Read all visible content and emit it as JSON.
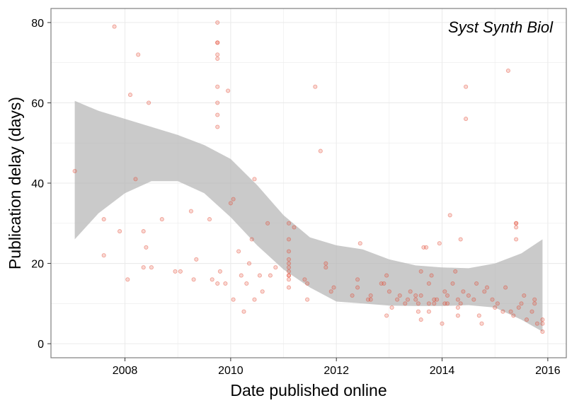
{
  "chart_data": {
    "type": "scatter",
    "title": "",
    "annotation": "Syst Synth Biol",
    "xlabel": "Date published online",
    "ylabel": "Publication delay (days)",
    "xlim": [
      2006.6,
      2016.35
    ],
    "ylim": [
      -3.5,
      83.5
    ],
    "x_ticks": [
      2008,
      2010,
      2012,
      2014,
      2016
    ],
    "x_tick_labels": [
      "2008",
      "2010",
      "2012",
      "2014",
      "2016"
    ],
    "y_ticks": [
      0,
      20,
      40,
      60,
      80
    ],
    "y_tick_labels": [
      "0",
      "20",
      "40",
      "60",
      "80"
    ],
    "grid": true,
    "colors": {
      "points": "#e34a33",
      "band": "#b3b3b3",
      "grid": "#ebebeb",
      "panel_border": "#7f7f7f"
    },
    "confidence_band": {
      "x": [
        2007.05,
        2007.5,
        2008.0,
        2008.5,
        2009.0,
        2009.5,
        2010.0,
        2010.5,
        2011.0,
        2011.5,
        2012.0,
        2012.5,
        2013.0,
        2013.5,
        2014.0,
        2014.5,
        2015.0,
        2015.5,
        2015.9
      ],
      "upper": [
        60.5,
        58.0,
        56.0,
        54.0,
        52.0,
        49.5,
        46.0,
        39.5,
        32.0,
        26.5,
        24.5,
        23.5,
        21.0,
        19.5,
        19.0,
        18.8,
        20.0,
        22.5,
        26.0
      ],
      "lower": [
        26.0,
        32.5,
        37.5,
        40.5,
        40.5,
        37.5,
        31.5,
        24.5,
        18.5,
        14.0,
        10.5,
        10.0,
        9.5,
        9.4,
        9.4,
        9.6,
        9.0,
        6.0,
        3.0
      ]
    },
    "points": [
      [
        2007.05,
        43
      ],
      [
        2007.6,
        31
      ],
      [
        2007.6,
        22
      ],
      [
        2007.8,
        79
      ],
      [
        2007.9,
        28
      ],
      [
        2008.05,
        16
      ],
      [
        2008.1,
        62
      ],
      [
        2008.2,
        41
      ],
      [
        2008.25,
        72
      ],
      [
        2008.35,
        28
      ],
      [
        2008.35,
        19
      ],
      [
        2008.4,
        24
      ],
      [
        2008.45,
        60
      ],
      [
        2008.5,
        19
      ],
      [
        2008.7,
        31
      ],
      [
        2008.95,
        18
      ],
      [
        2009.05,
        18
      ],
      [
        2009.25,
        33
      ],
      [
        2009.3,
        16
      ],
      [
        2009.35,
        21
      ],
      [
        2009.6,
        31
      ],
      [
        2009.65,
        16
      ],
      [
        2009.75,
        15
      ],
      [
        2009.75,
        80
      ],
      [
        2009.75,
        75
      ],
      [
        2009.75,
        75
      ],
      [
        2009.75,
        72
      ],
      [
        2009.75,
        71
      ],
      [
        2009.75,
        64
      ],
      [
        2009.75,
        60
      ],
      [
        2009.75,
        57
      ],
      [
        2009.75,
        54
      ],
      [
        2009.8,
        18
      ],
      [
        2009.9,
        15
      ],
      [
        2009.95,
        63
      ],
      [
        2010.0,
        35
      ],
      [
        2010.05,
        36
      ],
      [
        2010.05,
        11
      ],
      [
        2010.15,
        23
      ],
      [
        2010.2,
        17
      ],
      [
        2010.25,
        8
      ],
      [
        2010.3,
        15
      ],
      [
        2010.35,
        20
      ],
      [
        2010.4,
        26
      ],
      [
        2010.45,
        11
      ],
      [
        2010.45,
        41
      ],
      [
        2010.55,
        17
      ],
      [
        2010.6,
        13
      ],
      [
        2010.7,
        30
      ],
      [
        2010.75,
        17
      ],
      [
        2010.85,
        19
      ],
      [
        2011.1,
        30
      ],
      [
        2011.1,
        26
      ],
      [
        2011.1,
        23
      ],
      [
        2011.1,
        21
      ],
      [
        2011.1,
        20
      ],
      [
        2011.1,
        19
      ],
      [
        2011.1,
        18
      ],
      [
        2011.1,
        17
      ],
      [
        2011.1,
        17
      ],
      [
        2011.1,
        16
      ],
      [
        2011.1,
        14
      ],
      [
        2011.2,
        29
      ],
      [
        2011.4,
        16
      ],
      [
        2011.45,
        15
      ],
      [
        2011.45,
        11
      ],
      [
        2011.6,
        64
      ],
      [
        2011.7,
        48
      ],
      [
        2011.8,
        19
      ],
      [
        2011.8,
        20
      ],
      [
        2011.9,
        13
      ],
      [
        2011.95,
        14
      ],
      [
        2012.3,
        12
      ],
      [
        2012.4,
        14
      ],
      [
        2012.4,
        16
      ],
      [
        2012.45,
        25
      ],
      [
        2012.6,
        11
      ],
      [
        2012.65,
        11
      ],
      [
        2012.65,
        12
      ],
      [
        2012.85,
        15
      ],
      [
        2012.9,
        15
      ],
      [
        2012.95,
        7
      ],
      [
        2012.95,
        17
      ],
      [
        2013.0,
        13
      ],
      [
        2013.05,
        9
      ],
      [
        2013.15,
        11
      ],
      [
        2013.2,
        12
      ],
      [
        2013.3,
        10
      ],
      [
        2013.35,
        11
      ],
      [
        2013.4,
        13
      ],
      [
        2013.5,
        12
      ],
      [
        2013.5,
        11
      ],
      [
        2013.55,
        10
      ],
      [
        2013.55,
        8
      ],
      [
        2013.6,
        6
      ],
      [
        2013.6,
        12
      ],
      [
        2013.6,
        18
      ],
      [
        2013.65,
        24
      ],
      [
        2013.7,
        24
      ],
      [
        2013.75,
        15
      ],
      [
        2013.75,
        10
      ],
      [
        2013.75,
        8
      ],
      [
        2013.8,
        17
      ],
      [
        2013.85,
        11
      ],
      [
        2013.85,
        10
      ],
      [
        2013.9,
        11
      ],
      [
        2013.95,
        25
      ],
      [
        2014.0,
        5
      ],
      [
        2014.05,
        13
      ],
      [
        2014.05,
        10
      ],
      [
        2014.1,
        12
      ],
      [
        2014.1,
        10
      ],
      [
        2014.15,
        32
      ],
      [
        2014.2,
        15
      ],
      [
        2014.25,
        18
      ],
      [
        2014.3,
        7
      ],
      [
        2014.3,
        11
      ],
      [
        2014.3,
        9
      ],
      [
        2014.35,
        26
      ],
      [
        2014.35,
        10
      ],
      [
        2014.4,
        13
      ],
      [
        2014.45,
        64
      ],
      [
        2014.45,
        56
      ],
      [
        2014.5,
        12
      ],
      [
        2014.6,
        11
      ],
      [
        2014.65,
        15
      ],
      [
        2014.7,
        7
      ],
      [
        2014.75,
        5
      ],
      [
        2014.8,
        13
      ],
      [
        2014.85,
        14
      ],
      [
        2014.95,
        11
      ],
      [
        2015.0,
        9
      ],
      [
        2015.05,
        10
      ],
      [
        2015.15,
        8
      ],
      [
        2015.2,
        14
      ],
      [
        2015.25,
        68
      ],
      [
        2015.3,
        8
      ],
      [
        2015.35,
        7
      ],
      [
        2015.4,
        30
      ],
      [
        2015.4,
        30
      ],
      [
        2015.4,
        29
      ],
      [
        2015.4,
        26
      ],
      [
        2015.45,
        9
      ],
      [
        2015.5,
        10
      ],
      [
        2015.55,
        12
      ],
      [
        2015.6,
        6
      ],
      [
        2015.7,
        8
      ],
      [
        2015.75,
        11
      ],
      [
        2015.75,
        10
      ],
      [
        2015.8,
        5
      ],
      [
        2015.9,
        6
      ],
      [
        2015.9,
        5
      ],
      [
        2015.9,
        3
      ]
    ]
  }
}
